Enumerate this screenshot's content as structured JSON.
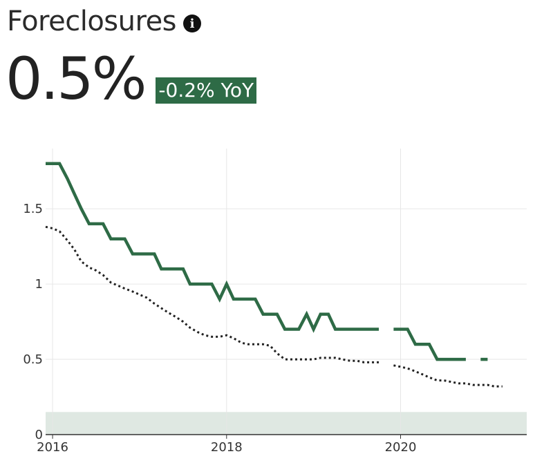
{
  "header": {
    "title": "Foreclosures",
    "value": "0.5%",
    "change_badge": "-0.2% YoY",
    "info_icon": "info-icon"
  },
  "colors": {
    "primary_line": "#2e6b46",
    "badge_bg": "#2e6b46",
    "band": "#dfe8e2",
    "dotted_line": "#222222",
    "grid": "#e6e6e6"
  },
  "chart_data": {
    "type": "line",
    "title": "",
    "xlabel": "",
    "ylabel": "",
    "xlim": [
      2015.92,
      2021.45
    ],
    "ylim": [
      0,
      1.9
    ],
    "x_ticks": [
      {
        "value": 2016,
        "label": "2016"
      },
      {
        "value": 2018,
        "label": "2018"
      },
      {
        "value": 2020,
        "label": "2020"
      }
    ],
    "y_ticks": [
      {
        "value": 0,
        "label": "0"
      },
      {
        "value": 0.5,
        "label": "0.5"
      },
      {
        "value": 1,
        "label": "1"
      },
      {
        "value": 1.5,
        "label": "1.5"
      }
    ],
    "grid": true,
    "band": {
      "y0": 0,
      "y1": 0.15
    },
    "series": [
      {
        "style": "solid",
        "segments": [
          [
            [
              2015.92,
              1.8
            ],
            [
              2016.0,
              1.8
            ],
            [
              2016.08,
              1.8
            ],
            [
              2016.17,
              1.7
            ],
            [
              2016.25,
              1.6
            ],
            [
              2016.33,
              1.5
            ],
            [
              2016.42,
              1.4
            ],
            [
              2016.5,
              1.4
            ],
            [
              2016.58,
              1.4
            ],
            [
              2016.67,
              1.3
            ],
            [
              2016.75,
              1.3
            ],
            [
              2016.83,
              1.3
            ],
            [
              2016.92,
              1.2
            ],
            [
              2017.0,
              1.2
            ],
            [
              2017.08,
              1.2
            ],
            [
              2017.17,
              1.2
            ],
            [
              2017.25,
              1.1
            ],
            [
              2017.33,
              1.1
            ],
            [
              2017.42,
              1.1
            ],
            [
              2017.5,
              1.1
            ],
            [
              2017.58,
              1.0
            ],
            [
              2017.67,
              1.0
            ],
            [
              2017.75,
              1.0
            ],
            [
              2017.83,
              1.0
            ],
            [
              2017.92,
              0.9
            ],
            [
              2018.0,
              1.0
            ],
            [
              2018.08,
              0.9
            ],
            [
              2018.17,
              0.9
            ],
            [
              2018.25,
              0.9
            ],
            [
              2018.33,
              0.9
            ],
            [
              2018.42,
              0.8
            ],
            [
              2018.5,
              0.8
            ],
            [
              2018.58,
              0.8
            ],
            [
              2018.67,
              0.7
            ],
            [
              2018.75,
              0.7
            ],
            [
              2018.83,
              0.7
            ],
            [
              2018.92,
              0.8
            ],
            [
              2019.0,
              0.7
            ],
            [
              2019.08,
              0.8
            ],
            [
              2019.17,
              0.8
            ],
            [
              2019.25,
              0.7
            ],
            [
              2019.33,
              0.7
            ],
            [
              2019.42,
              0.7
            ],
            [
              2019.5,
              0.7
            ],
            [
              2019.58,
              0.7
            ],
            [
              2019.67,
              0.7
            ],
            [
              2019.75,
              0.7
            ]
          ],
          [
            [
              2019.92,
              0.7
            ],
            [
              2020.0,
              0.7
            ],
            [
              2020.08,
              0.7
            ],
            [
              2020.17,
              0.6
            ],
            [
              2020.25,
              0.6
            ],
            [
              2020.33,
              0.6
            ],
            [
              2020.42,
              0.5
            ],
            [
              2020.5,
              0.5
            ],
            [
              2020.58,
              0.5
            ],
            [
              2020.67,
              0.5
            ],
            [
              2020.75,
              0.5
            ]
          ],
          [
            [
              2020.92,
              0.5
            ],
            [
              2021.0,
              0.5
            ]
          ]
        ]
      },
      {
        "style": "dotted",
        "segments": [
          [
            [
              2015.92,
              1.38
            ],
            [
              2016.0,
              1.37
            ],
            [
              2016.08,
              1.35
            ],
            [
              2016.17,
              1.29
            ],
            [
              2016.25,
              1.23
            ],
            [
              2016.33,
              1.15
            ],
            [
              2016.42,
              1.11
            ],
            [
              2016.5,
              1.09
            ],
            [
              2016.58,
              1.06
            ],
            [
              2016.67,
              1.01
            ],
            [
              2016.75,
              0.99
            ],
            [
              2016.83,
              0.97
            ],
            [
              2016.92,
              0.95
            ],
            [
              2017.0,
              0.93
            ],
            [
              2017.08,
              0.91
            ],
            [
              2017.17,
              0.87
            ],
            [
              2017.25,
              0.84
            ],
            [
              2017.33,
              0.81
            ],
            [
              2017.42,
              0.78
            ],
            [
              2017.5,
              0.75
            ],
            [
              2017.58,
              0.71
            ],
            [
              2017.67,
              0.68
            ],
            [
              2017.75,
              0.66
            ],
            [
              2017.83,
              0.65
            ],
            [
              2017.92,
              0.65
            ],
            [
              2018.0,
              0.66
            ],
            [
              2018.08,
              0.64
            ],
            [
              2018.17,
              0.61
            ],
            [
              2018.25,
              0.6
            ],
            [
              2018.33,
              0.6
            ],
            [
              2018.42,
              0.6
            ],
            [
              2018.5,
              0.59
            ],
            [
              2018.58,
              0.54
            ],
            [
              2018.67,
              0.5
            ],
            [
              2018.75,
              0.5
            ],
            [
              2018.83,
              0.5
            ],
            [
              2018.92,
              0.5
            ],
            [
              2019.0,
              0.5
            ],
            [
              2019.08,
              0.51
            ],
            [
              2019.17,
              0.51
            ],
            [
              2019.25,
              0.51
            ],
            [
              2019.33,
              0.5
            ],
            [
              2019.42,
              0.49
            ],
            [
              2019.5,
              0.49
            ],
            [
              2019.58,
              0.48
            ],
            [
              2019.67,
              0.48
            ],
            [
              2019.75,
              0.48
            ]
          ],
          [
            [
              2019.92,
              0.46
            ],
            [
              2020.0,
              0.45
            ],
            [
              2020.08,
              0.44
            ],
            [
              2020.17,
              0.42
            ],
            [
              2020.25,
              0.4
            ],
            [
              2020.33,
              0.38
            ],
            [
              2020.42,
              0.36
            ],
            [
              2020.5,
              0.36
            ],
            [
              2020.58,
              0.35
            ],
            [
              2020.67,
              0.34
            ],
            [
              2020.75,
              0.34
            ],
            [
              2020.83,
              0.33
            ],
            [
              2020.92,
              0.33
            ],
            [
              2021.0,
              0.33
            ],
            [
              2021.08,
              0.32
            ],
            [
              2021.17,
              0.32
            ]
          ]
        ]
      }
    ]
  }
}
